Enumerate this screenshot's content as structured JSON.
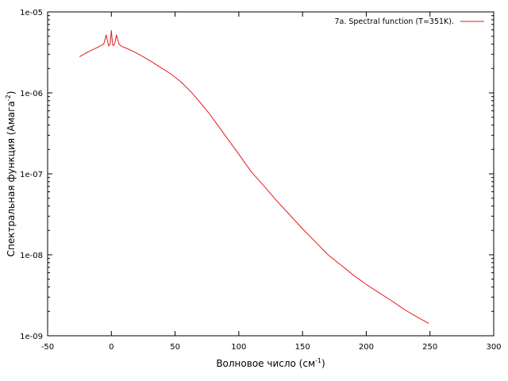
{
  "chart_data": {
    "type": "line",
    "xlabel": "Волновое число (см",
    "xlabel_sup": "-1",
    "xlabel_tail": ")",
    "ylabel": "Спектральная функция (Амага",
    "ylabel_sup": "-2",
    "ylabel_tail": ")",
    "xlim": [
      -50,
      300
    ],
    "ylim": [
      1e-09,
      1e-05
    ],
    "yscale": "log",
    "xticks": [
      -50,
      0,
      50,
      100,
      150,
      200,
      250,
      300
    ],
    "xtick_labels": [
      "-50",
      "0",
      "50",
      "100",
      "150",
      "200",
      "250",
      "300"
    ],
    "yticks": [
      1e-09,
      1e-08,
      1e-07,
      1e-06,
      1e-05
    ],
    "ytick_labels": [
      "1e-09",
      "1e-08",
      "1e-07",
      "1e-06",
      "1e-05"
    ],
    "grid": false,
    "legend_position": "top-right",
    "series": [
      {
        "name": "7a. Spectral function (T=351K).",
        "color": "#e41a1c",
        "x": [
          -25,
          -20,
          -15,
          -10,
          -6,
          -4,
          -3,
          -2,
          -1,
          0,
          1,
          2,
          3,
          4,
          6,
          8,
          12,
          18,
          25,
          32,
          40,
          47,
          55,
          62,
          70,
          77,
          85,
          92,
          100,
          105,
          110,
          120,
          130,
          140,
          150,
          160,
          170,
          180,
          190,
          200,
          210,
          220,
          230,
          240,
          249
        ],
        "y": [
          2.8e-06,
          3.1e-06,
          3.4e-06,
          3.7e-06,
          4e-06,
          5.2e-06,
          4.3e-06,
          3.8e-06,
          4e-06,
          5.9e-06,
          3.9e-06,
          3.85e-06,
          4.3e-06,
          5.2e-06,
          4e-06,
          3.75e-06,
          3.55e-06,
          3.2e-06,
          2.8e-06,
          2.4e-06,
          2e-06,
          1.7e-06,
          1.35e-06,
          1.05e-06,
          7.5e-07,
          5.5e-07,
          3.7e-07,
          2.6e-07,
          1.75e-07,
          1.35e-07,
          1.05e-07,
          7e-08,
          4.6e-08,
          3.1e-08,
          2.1e-08,
          1.45e-08,
          1e-08,
          7.5e-09,
          5.6e-09,
          4.3e-09,
          3.4e-09,
          2.7e-09,
          2.1e-09,
          1.7e-09,
          1.42e-09
        ]
      }
    ]
  }
}
